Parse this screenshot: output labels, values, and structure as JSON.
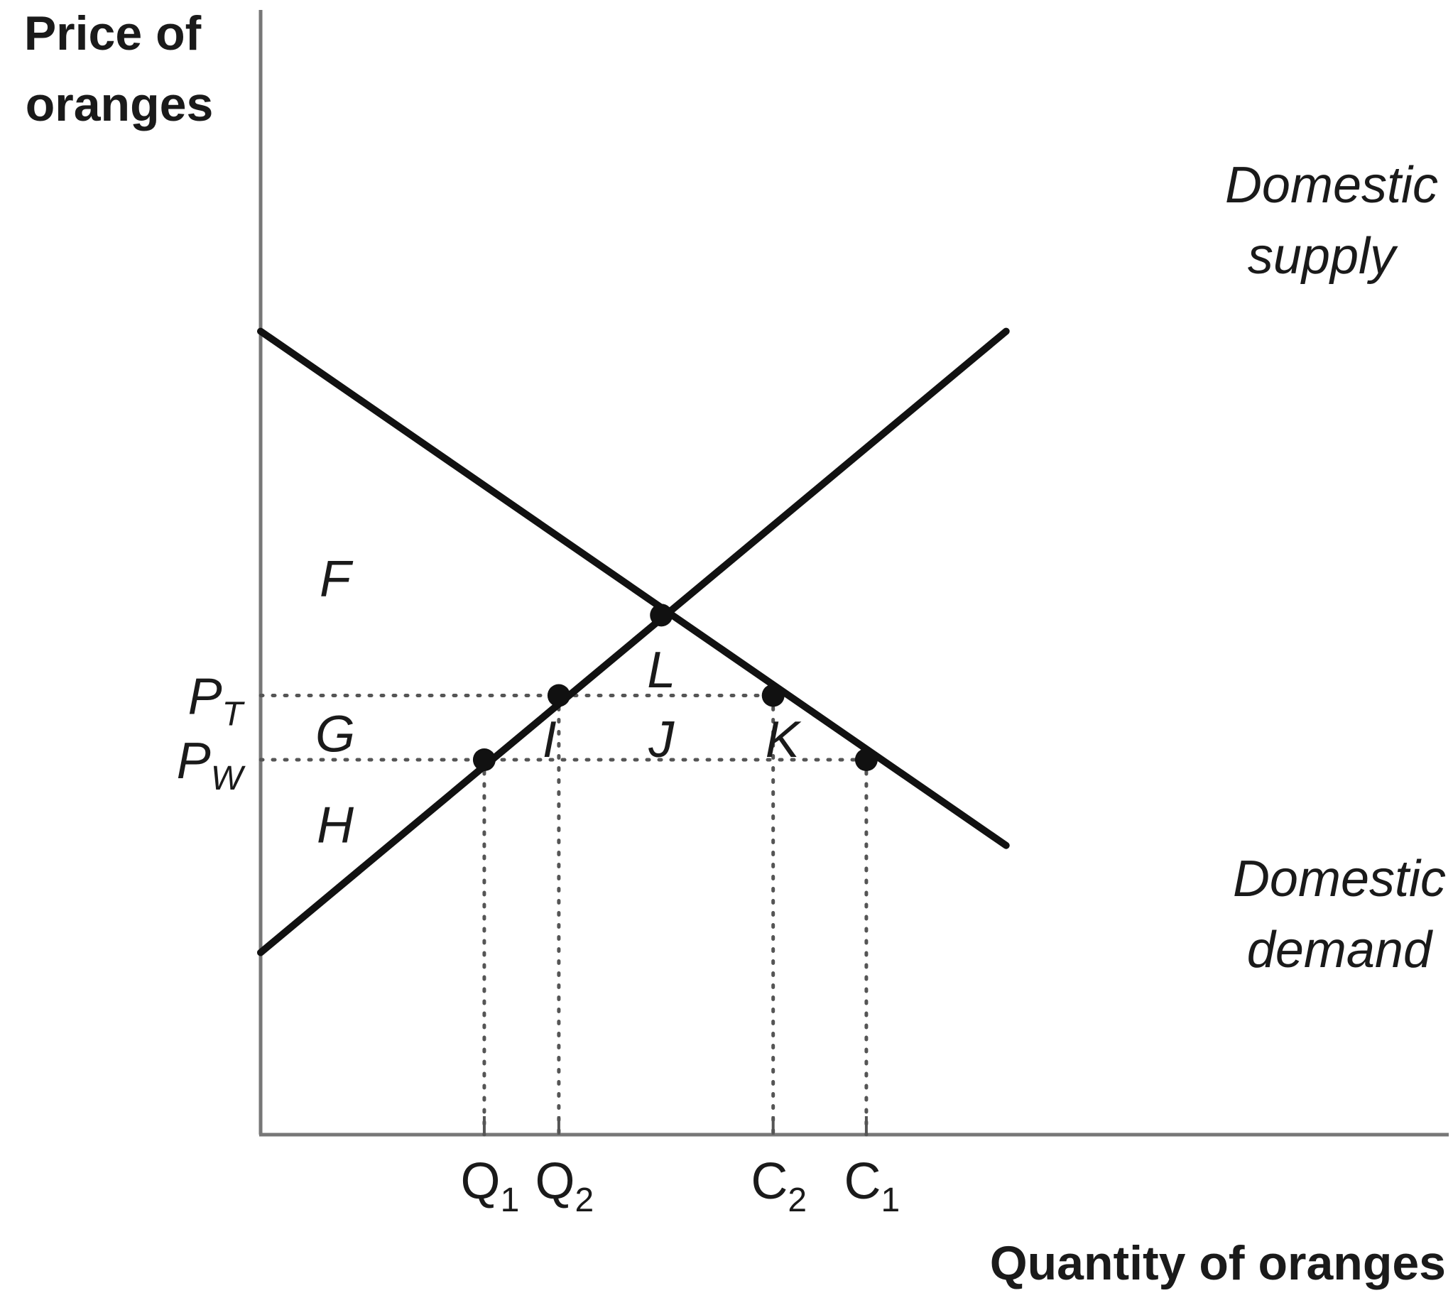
{
  "chart_data": {
    "type": "line",
    "title": "",
    "xlabel": "Quantity of oranges",
    "ylabel_lines": [
      "Price of",
      "oranges"
    ],
    "xlim": [
      0,
      10
    ],
    "ylim": [
      0,
      10
    ],
    "grid": false,
    "series": [
      {
        "name": "Domestic supply",
        "label_lines": [
          "Domestic",
          "supply"
        ],
        "points": [
          [
            0,
            1.7
          ],
          [
            8,
            7.5
          ]
        ]
      },
      {
        "name": "Domestic demand",
        "label_lines": [
          "Domestic",
          "demand"
        ],
        "points": [
          [
            0,
            7.5
          ],
          [
            8,
            2.7
          ]
        ]
      }
    ],
    "price_levels": [
      {
        "id": "pt",
        "letter": "P",
        "sub": "T",
        "y": 4.1,
        "x_end": 5.5
      },
      {
        "id": "pw",
        "letter": "P",
        "sub": "W",
        "y": 3.5,
        "x_end": 6.5
      }
    ],
    "quantity_marks": [
      {
        "id": "q1",
        "letter": "Q",
        "sub": "1",
        "x": 2.4,
        "y_top": 3.5
      },
      {
        "id": "q2",
        "letter": "Q",
        "sub": "2",
        "x": 3.2,
        "y_top": 4.1
      },
      {
        "id": "c2",
        "letter": "C",
        "sub": "2",
        "x": 5.5,
        "y_top": 4.1
      },
      {
        "id": "c1",
        "letter": "C",
        "sub": "1",
        "x": 6.5,
        "y_top": 3.5
      }
    ],
    "points": [
      {
        "id": "eq",
        "x": 4.3,
        "y": 4.85
      },
      {
        "id": "q1pt",
        "x": 2.4,
        "y": 3.5
      },
      {
        "id": "q2pt",
        "x": 3.2,
        "y": 4.1
      },
      {
        "id": "c2pt",
        "x": 5.5,
        "y": 4.1
      },
      {
        "id": "c1pt",
        "x": 6.5,
        "y": 3.5
      }
    ],
    "area_labels": [
      {
        "text": "F",
        "x": 0.8,
        "y": 5.2
      },
      {
        "text": "G",
        "x": 0.8,
        "y": 3.75
      },
      {
        "text": "H",
        "x": 0.8,
        "y": 2.9
      },
      {
        "text": "I",
        "x": 3.1,
        "y": 3.7
      },
      {
        "text": "J",
        "x": 4.3,
        "y": 3.7
      },
      {
        "text": "K",
        "x": 5.6,
        "y": 3.7
      },
      {
        "text": "L",
        "x": 4.3,
        "y": 4.35
      }
    ]
  }
}
